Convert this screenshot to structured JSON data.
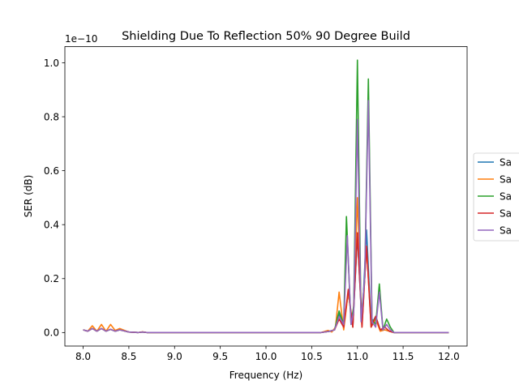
{
  "chart_data": {
    "type": "line",
    "title": "Shielding Due To Reflection 50% 90 Degree Build",
    "xlabel": "Frequency (Hz)",
    "ylabel": "SER (dB)",
    "offset_label": "1e−10",
    "xlim": [
      7.8,
      12.2
    ],
    "ylim": [
      -0.05,
      1.06
    ],
    "x_ticks": [
      8.0,
      8.5,
      9.0,
      9.5,
      10.0,
      10.5,
      11.0,
      11.5,
      12.0
    ],
    "x_tick_labels": [
      "8.0",
      "8.5",
      "9.0",
      "9.5",
      "10.0",
      "10.5",
      "11.0",
      "11.5",
      "12.0"
    ],
    "y_ticks": [
      0.0,
      0.2,
      0.4,
      0.6,
      0.8,
      1.0
    ],
    "y_tick_labels": [
      "0.0",
      "0.2",
      "0.4",
      "0.6",
      "0.8",
      "1.0"
    ],
    "legend_position": "right, clipped",
    "series": [
      {
        "name": "Sa",
        "color": "#1f77b4",
        "x": [
          8.0,
          8.05,
          8.1,
          8.15,
          8.2,
          8.25,
          8.3,
          8.35,
          8.4,
          8.5,
          8.6,
          8.65,
          8.7,
          9.0,
          10.0,
          10.6,
          10.7,
          10.75,
          10.8,
          10.85,
          10.9,
          10.95,
          11.0,
          11.05,
          11.1,
          11.15,
          11.2,
          11.25,
          11.3,
          11.35,
          11.4,
          12.0
        ],
        "y": [
          0.01,
          0.005,
          0.015,
          0.005,
          0.015,
          0.005,
          0.012,
          0.005,
          0.01,
          0.002,
          0.0,
          0.002,
          0.0,
          0.0,
          0.0,
          0.0,
          0.005,
          0.01,
          0.07,
          0.02,
          0.15,
          0.02,
          0.36,
          0.03,
          0.38,
          0.03,
          0.06,
          0.01,
          0.01,
          0.005,
          0.0,
          0.0
        ]
      },
      {
        "name": "Sa",
        "color": "#ff7f0e",
        "x": [
          8.0,
          8.05,
          8.1,
          8.15,
          8.2,
          8.25,
          8.3,
          8.35,
          8.4,
          8.5,
          8.6,
          8.65,
          8.7,
          9.0,
          10.0,
          10.6,
          10.68,
          10.72,
          10.76,
          10.8,
          10.85,
          10.9,
          10.95,
          11.0,
          11.05,
          11.1,
          11.15,
          11.2,
          11.25,
          11.3,
          11.35,
          11.4,
          12.0
        ],
        "y": [
          0.01,
          0.005,
          0.025,
          0.005,
          0.03,
          0.005,
          0.03,
          0.008,
          0.015,
          0.002,
          0.0,
          0.003,
          0.0,
          0.0,
          0.0,
          0.0,
          0.008,
          0.002,
          0.02,
          0.15,
          0.01,
          0.15,
          0.02,
          0.5,
          0.02,
          0.32,
          0.02,
          0.05,
          0.005,
          0.01,
          0.005,
          0.0,
          0.0
        ]
      },
      {
        "name": "Sa",
        "color": "#2ca02c",
        "x": [
          8.0,
          8.05,
          8.1,
          8.15,
          8.2,
          8.25,
          8.3,
          8.35,
          8.4,
          8.5,
          8.6,
          8.65,
          8.7,
          9.0,
          10.0,
          10.6,
          10.7,
          10.75,
          10.8,
          10.85,
          10.88,
          10.93,
          10.96,
          11.0,
          11.04,
          11.08,
          11.12,
          11.16,
          11.2,
          11.24,
          11.28,
          11.32,
          11.36,
          11.4,
          12.0
        ],
        "y": [
          0.01,
          0.005,
          0.015,
          0.005,
          0.015,
          0.005,
          0.012,
          0.005,
          0.01,
          0.002,
          0.0,
          0.002,
          0.0,
          0.0,
          0.0,
          0.0,
          0.005,
          0.01,
          0.08,
          0.03,
          0.43,
          0.03,
          0.1,
          1.01,
          0.05,
          0.2,
          0.94,
          0.05,
          0.03,
          0.18,
          0.01,
          0.05,
          0.02,
          0.0,
          0.0
        ]
      },
      {
        "name": "Sa",
        "color": "#d62728",
        "x": [
          8.0,
          8.05,
          8.1,
          8.15,
          8.2,
          8.25,
          8.3,
          8.35,
          8.4,
          8.5,
          8.6,
          8.65,
          8.7,
          9.0,
          10.0,
          10.6,
          10.7,
          10.75,
          10.8,
          10.85,
          10.9,
          10.95,
          11.0,
          11.05,
          11.1,
          11.15,
          11.2,
          11.25,
          11.3,
          11.35,
          11.4,
          12.0
        ],
        "y": [
          0.01,
          0.005,
          0.015,
          0.005,
          0.015,
          0.005,
          0.012,
          0.005,
          0.01,
          0.002,
          0.0,
          0.002,
          0.0,
          0.0,
          0.0,
          0.0,
          0.005,
          0.01,
          0.05,
          0.02,
          0.16,
          0.02,
          0.37,
          0.02,
          0.32,
          0.02,
          0.06,
          0.01,
          0.02,
          0.005,
          0.0,
          0.0
        ]
      },
      {
        "name": "Sa",
        "color": "#9467bd",
        "x": [
          8.0,
          8.05,
          8.1,
          8.15,
          8.2,
          8.25,
          8.3,
          8.35,
          8.4,
          8.5,
          8.6,
          8.65,
          8.7,
          9.0,
          10.0,
          10.6,
          10.7,
          10.75,
          10.8,
          10.85,
          10.89,
          10.93,
          10.96,
          11.0,
          11.04,
          11.08,
          11.12,
          11.16,
          11.2,
          11.24,
          11.28,
          11.32,
          11.36,
          11.4,
          12.0
        ],
        "y": [
          0.01,
          0.005,
          0.015,
          0.005,
          0.015,
          0.005,
          0.012,
          0.005,
          0.01,
          0.002,
          0.0,
          0.002,
          0.0,
          0.0,
          0.0,
          0.0,
          0.005,
          0.01,
          0.06,
          0.03,
          0.36,
          0.03,
          0.08,
          0.79,
          0.04,
          0.2,
          0.86,
          0.04,
          0.02,
          0.15,
          0.01,
          0.03,
          0.01,
          0.0,
          0.0
        ]
      }
    ]
  }
}
